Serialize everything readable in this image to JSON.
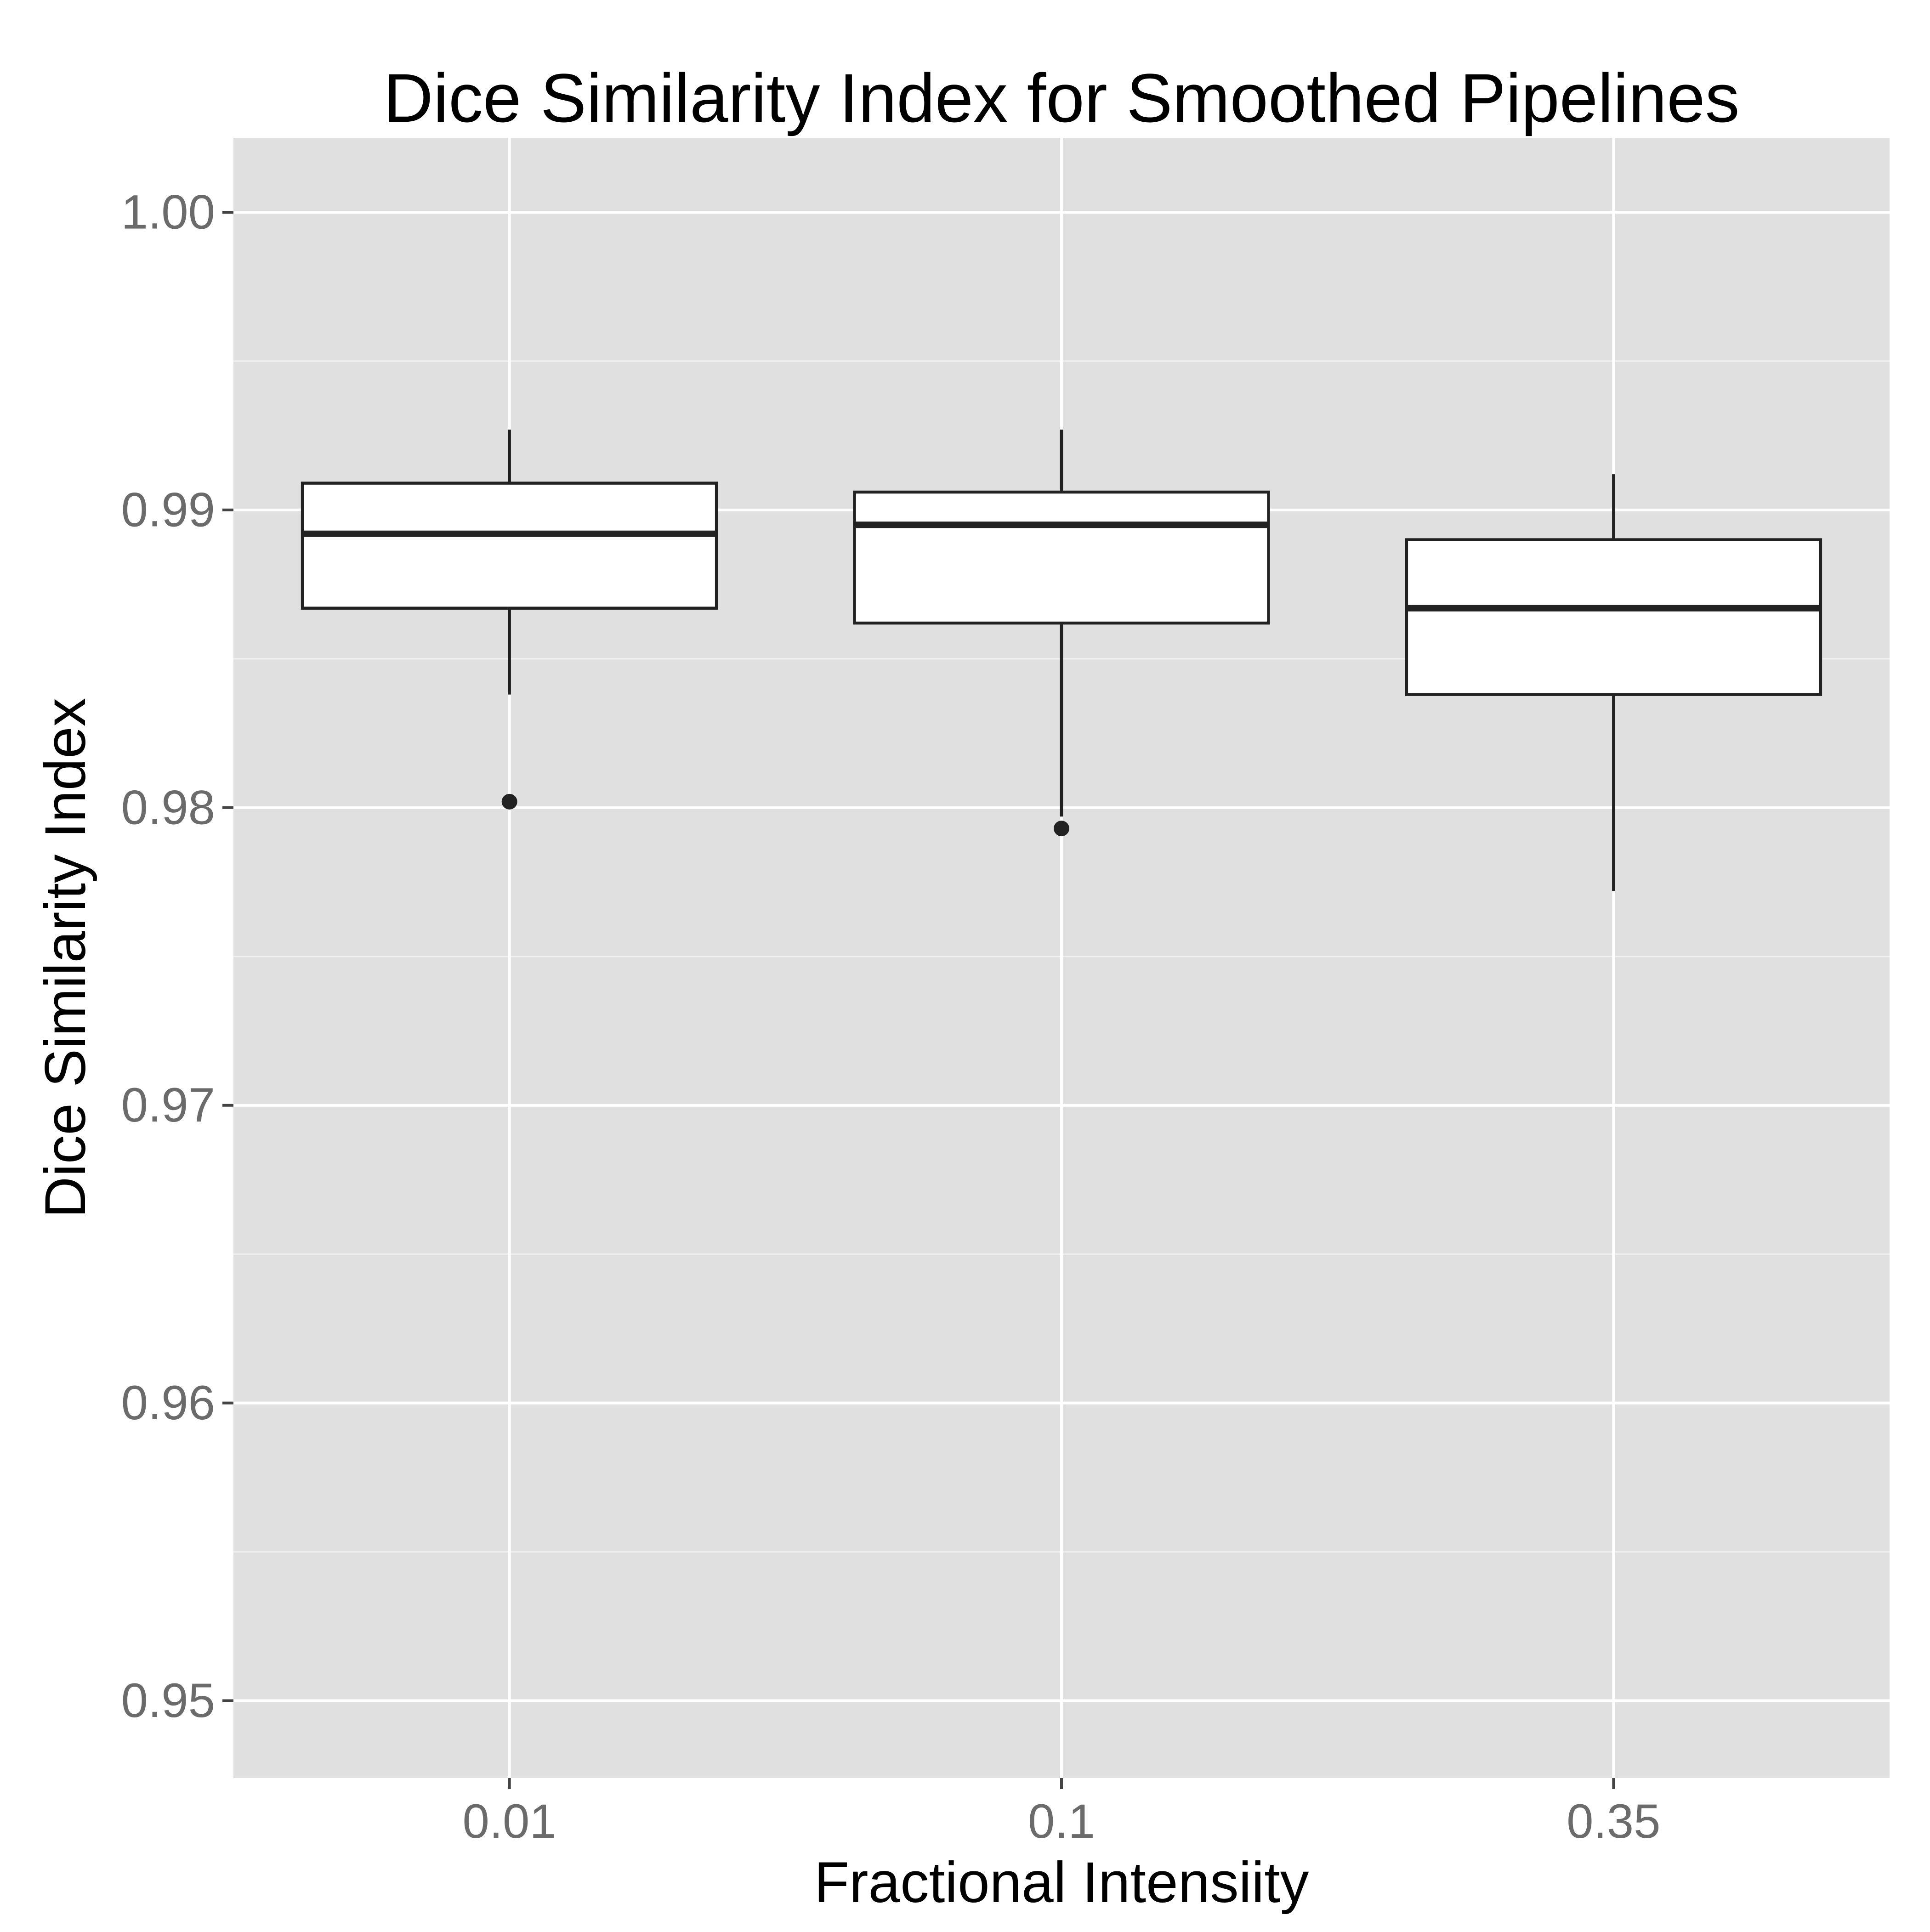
{
  "chart_data": {
    "type": "box",
    "title": "Dice Similarity Index for Smoothed Pipelines",
    "xlabel": "Fractional Intensiity",
    "ylabel": "Dice Similarity Index",
    "categories": [
      "0.01",
      "0.1",
      "0.35"
    ],
    "ylim": [
      0.9474,
      1.0025
    ],
    "yticks": [
      0.95,
      0.96,
      0.97,
      0.98,
      0.99,
      1.0
    ],
    "ytick_labels": [
      "0.95",
      "0.96",
      "0.97",
      "0.98",
      "0.99",
      "1.00"
    ],
    "grid": true,
    "boxes": [
      {
        "category": "0.01",
        "whisker_low": 0.9838,
        "q1": 0.9867,
        "median": 0.9892,
        "q3": 0.9909,
        "whisker_high": 0.9927,
        "outliers": [
          0.9802
        ]
      },
      {
        "category": "0.1",
        "whisker_low": 0.9797,
        "q1": 0.9862,
        "median": 0.9895,
        "q3": 0.9906,
        "whisker_high": 0.9927,
        "outliers": [
          0.9793
        ]
      },
      {
        "category": "0.35",
        "whisker_low": 0.9772,
        "q1": 0.9838,
        "median": 0.9867,
        "q3": 0.989,
        "whisker_high": 0.9912,
        "outliers": []
      }
    ]
  }
}
